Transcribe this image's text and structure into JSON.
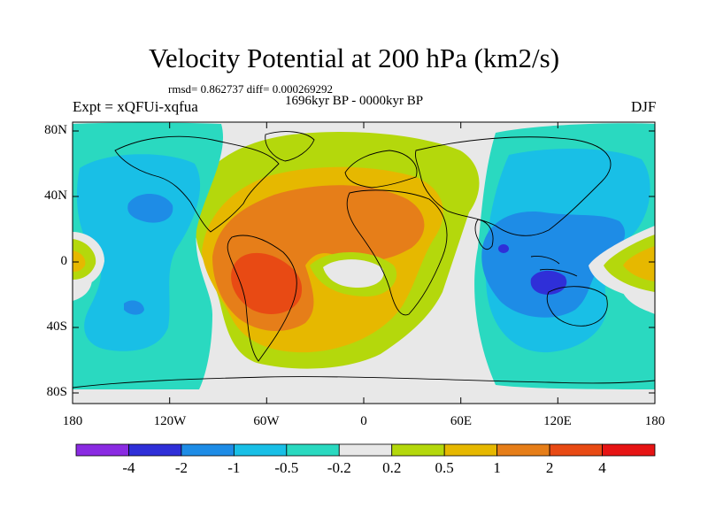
{
  "title": "Velocity Potential at 200 hPa (km2/s)",
  "stats": "rmsd= 0.862737 diff= 0.000269292",
  "period": "1696kyr BP - 0000kyr BP",
  "expt": "Expt = xQFUi-xqfua",
  "season": "DJF",
  "map": {
    "lat_labels": [
      "80N",
      "40N",
      "0",
      "40S",
      "80S"
    ],
    "lon_labels": [
      "180",
      "120W",
      "60W",
      "0",
      "60E",
      "120E",
      "180"
    ],
    "colors": {
      "ocean_neutral": "#e8e8e8",
      "land_outline": "#000000"
    }
  },
  "colorbar": {
    "labels": [
      "-4",
      "-2",
      "-1",
      "-0.5",
      "-0.2",
      "0.2",
      "0.5",
      "1",
      "2",
      "4"
    ],
    "colors": [
      "#8a2be2",
      "#2f2fd8",
      "#1e8ce6",
      "#19bfe6",
      "#2ad9c0",
      "#e8e8e8",
      "#b4d80c",
      "#e6b800",
      "#e67e19",
      "#e84a14",
      "#e61414"
    ]
  }
}
